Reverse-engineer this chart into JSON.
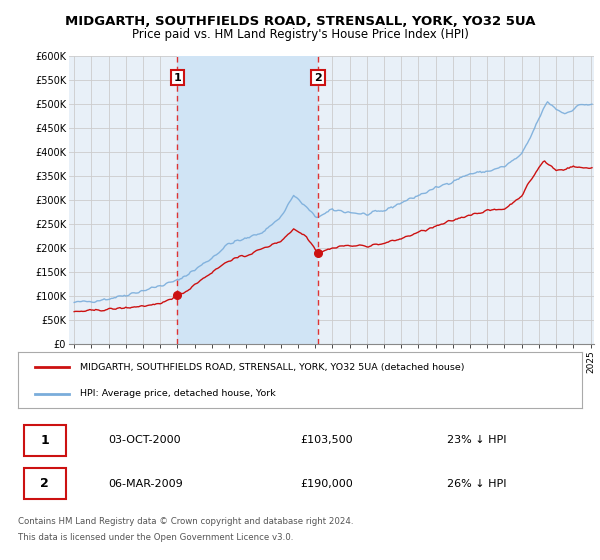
{
  "title": "MIDGARTH, SOUTHFIELDS ROAD, STRENSALL, YORK, YO32 5UA",
  "subtitle": "Price paid vs. HM Land Registry's House Price Index (HPI)",
  "title_fontsize": 9.5,
  "subtitle_fontsize": 8.5,
  "background_color": "#ffffff",
  "plot_bg_color": "#e8f0f8",
  "shade_color": "#d0e4f5",
  "grid_color": "#cccccc",
  "hpi_color": "#7aaddb",
  "price_color": "#cc1111",
  "vline_color": "#dd3333",
  "legend_line1": "MIDGARTH, SOUTHFIELDS ROAD, STRENSALL, YORK, YO32 5UA (detached house)",
  "legend_line2": "HPI: Average price, detached house, York",
  "footer1": "Contains HM Land Registry data © Crown copyright and database right 2024.",
  "footer2": "This data is licensed under the Open Government Licence v3.0.",
  "table_row1": [
    "1",
    "03-OCT-2000",
    "£103,500",
    "23% ↓ HPI"
  ],
  "table_row2": [
    "2",
    "06-MAR-2009",
    "£190,000",
    "26% ↓ HPI"
  ],
  "ytick_vals": [
    0,
    50000,
    100000,
    150000,
    200000,
    250000,
    300000,
    350000,
    400000,
    450000,
    500000,
    550000,
    600000
  ],
  "ylabel_ticks": [
    "£0",
    "£50K",
    "£100K",
    "£150K",
    "£200K",
    "£250K",
    "£300K",
    "£350K",
    "£400K",
    "£450K",
    "£500K",
    "£550K",
    "£600K"
  ],
  "xlim": [
    1994.7,
    2025.2
  ],
  "ylim": [
    0,
    600000
  ],
  "vline_x1": 2001.0,
  "vline_x2": 2009.17,
  "sale1_y": 103500,
  "sale2_y": 190000,
  "xtick_start": 1995,
  "xtick_end": 2025
}
